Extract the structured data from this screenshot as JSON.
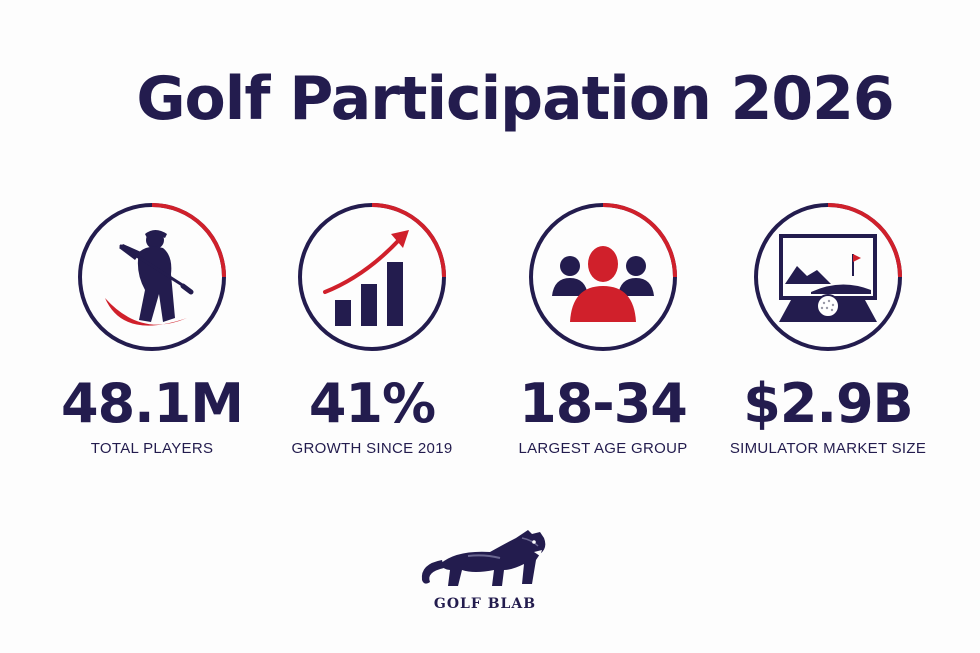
{
  "title": "Golf Participation 2026",
  "colors": {
    "navy": "#231c4e",
    "red": "#d0202b",
    "background": "#fdfdfd"
  },
  "stats": [
    {
      "value": "48.1M",
      "label": "TOTAL PLAYERS",
      "icon": "golfer-icon"
    },
    {
      "value": "41%",
      "label": "GROWTH SINCE 2019",
      "icon": "growth-chart-icon"
    },
    {
      "value": "18-34",
      "label": "LARGEST AGE GROUP",
      "icon": "people-group-icon"
    },
    {
      "value": "$2.9B",
      "label": "SIMULATOR MARKET SIZE",
      "icon": "golf-simulator-icon"
    }
  ],
  "logo": {
    "text": "GOLF BLAB",
    "icon": "panther-icon"
  }
}
